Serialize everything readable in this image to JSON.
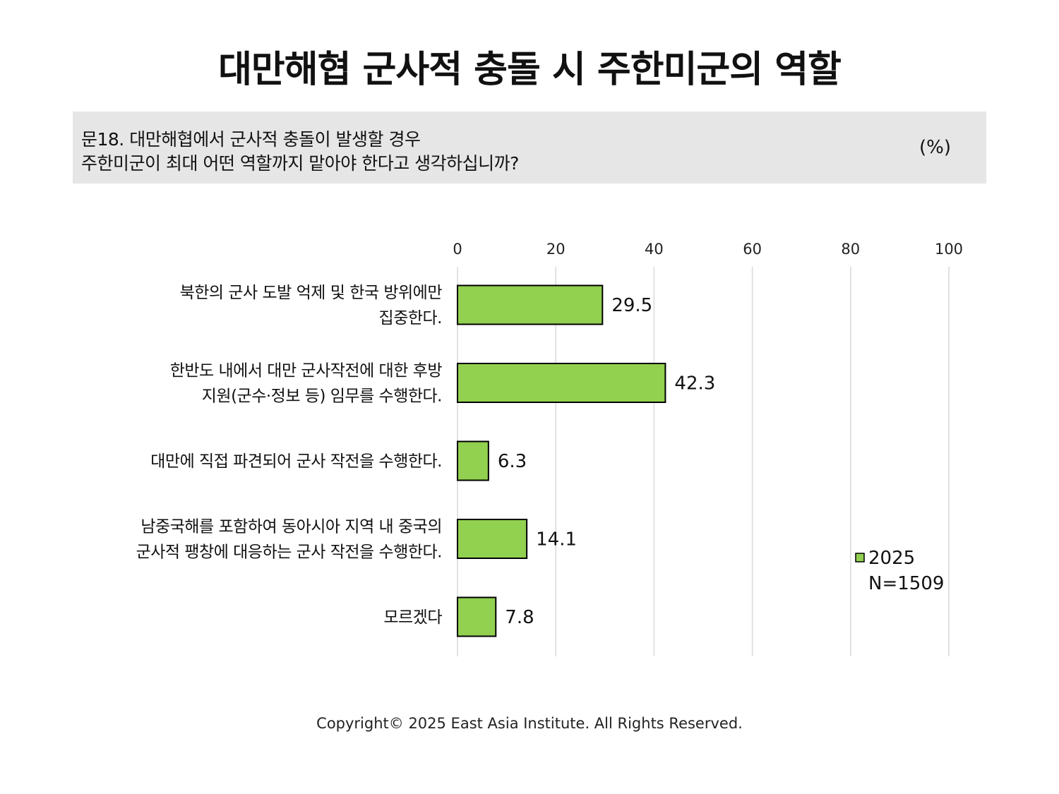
{
  "title": "대만해협 군사적 충돌 시 주한미군의 역할",
  "question": {
    "line1": "문18. 대만해협에서 군사적 충돌이 발생할 경우",
    "line2": "주한미군이 최대 어떤 역할까지 맡아야 한다고 생각하십니까?",
    "unit": "(%)"
  },
  "chart_data": {
    "type": "bar",
    "orientation": "horizontal",
    "categories": [
      [
        "북한의 군사 도발 억제 및 한국 방위에만",
        "집중한다."
      ],
      [
        "한반도 내에서 대만 군사작전에 대한 후방",
        "지원(군수·정보 등) 임무를 수행한다."
      ],
      [
        "대만에 직접 파견되어 군사 작전을 수행한다."
      ],
      [
        "남중국해를 포함하여 동아시아 지역 내 중국의",
        "군사적 팽창에 대응하는 군사 작전을 수행한다."
      ],
      [
        "모르겠다"
      ]
    ],
    "series": [
      {
        "name": "2025",
        "values": [
          29.5,
          42.3,
          6.3,
          14.1,
          7.8
        ],
        "color": "#92d050"
      }
    ],
    "value_labels": [
      "29.5",
      "42.3",
      "6.3",
      "14.1",
      "7.8"
    ],
    "xlim": [
      0,
      100
    ],
    "x_ticks": [
      0,
      20,
      40,
      60,
      80,
      100
    ],
    "grid": true,
    "legend": {
      "position": "right",
      "label": "2025",
      "note": "N=1509"
    }
  },
  "footer": "Copyright© 2025 East Asia Institute. All Rights Reserved."
}
